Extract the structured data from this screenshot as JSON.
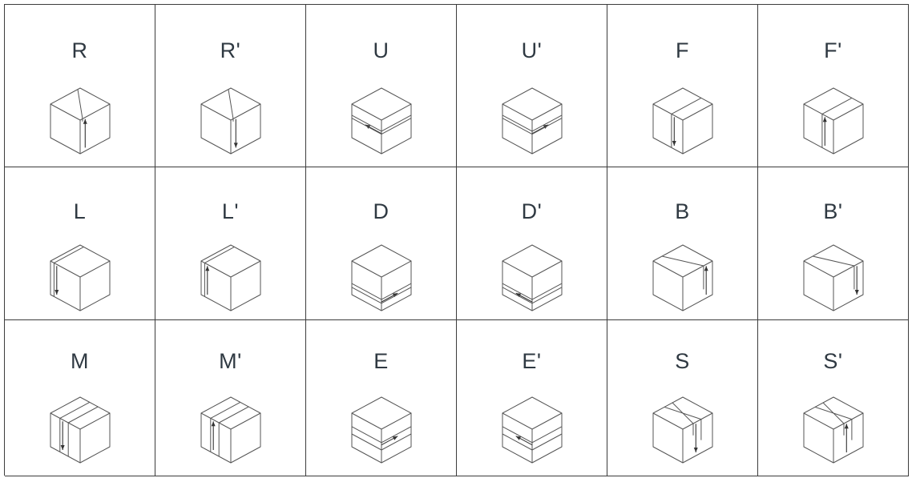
{
  "moves": [
    {
      "label": "R",
      "icon": "cube-r-icon",
      "axis": "x",
      "slice": "right",
      "dir": "up"
    },
    {
      "label": "R'",
      "icon": "cube-r-prime-icon",
      "axis": "x",
      "slice": "right",
      "dir": "down"
    },
    {
      "label": "U",
      "icon": "cube-u-icon",
      "axis": "y",
      "slice": "top",
      "dir": "left"
    },
    {
      "label": "U'",
      "icon": "cube-u-prime-icon",
      "axis": "y",
      "slice": "top",
      "dir": "right"
    },
    {
      "label": "F",
      "icon": "cube-f-icon",
      "axis": "z",
      "slice": "front",
      "dir": "down"
    },
    {
      "label": "F'",
      "icon": "cube-f-prime-icon",
      "axis": "z",
      "slice": "front",
      "dir": "up"
    },
    {
      "label": "L",
      "icon": "cube-l-icon",
      "axis": "x",
      "slice": "left",
      "dir": "down"
    },
    {
      "label": "L'",
      "icon": "cube-l-prime-icon",
      "axis": "x",
      "slice": "left",
      "dir": "up"
    },
    {
      "label": "D",
      "icon": "cube-d-icon",
      "axis": "y",
      "slice": "bottom",
      "dir": "right"
    },
    {
      "label": "D'",
      "icon": "cube-d-prime-icon",
      "axis": "y",
      "slice": "bottom",
      "dir": "left"
    },
    {
      "label": "B",
      "icon": "cube-b-icon",
      "axis": "z",
      "slice": "back",
      "dir": "up"
    },
    {
      "label": "B'",
      "icon": "cube-b-prime-icon",
      "axis": "z",
      "slice": "back",
      "dir": "down"
    },
    {
      "label": "M",
      "icon": "cube-m-icon",
      "axis": "x",
      "slice": "middle",
      "dir": "down"
    },
    {
      "label": "M'",
      "icon": "cube-m-prime-icon",
      "axis": "x",
      "slice": "middle",
      "dir": "up"
    },
    {
      "label": "E",
      "icon": "cube-e-icon",
      "axis": "y",
      "slice": "middle",
      "dir": "right"
    },
    {
      "label": "E'",
      "icon": "cube-e-prime-icon",
      "axis": "y",
      "slice": "middle",
      "dir": "left"
    },
    {
      "label": "S",
      "icon": "cube-s-icon",
      "axis": "z",
      "slice": "middle",
      "dir": "down"
    },
    {
      "label": "S'",
      "icon": "cube-s-prime-icon",
      "axis": "z",
      "slice": "middle",
      "dir": "up"
    }
  ],
  "colors": {
    "border": "#3c3c3c",
    "label": "#2f3942",
    "line": "#555555",
    "arrow": "#333333"
  }
}
